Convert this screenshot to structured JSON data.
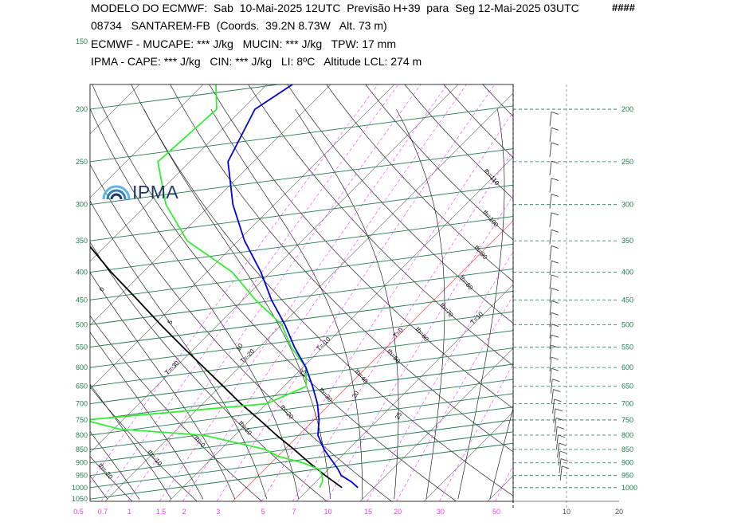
{
  "header": {
    "line1": "MODELO DO ECMWF:  Sab  10-Mai-2025 12UTC  Previsão H+39  para  Seg 12-Mai-2025 03UTC",
    "marks": "####",
    "line2": "08734   SANTAREM-FB  (Coords.  39.2N 8.73W   Alt. 73 m)",
    "line3": "ECMWF - MUCAPE: *** J/kg   MUCIN: *** J/kg   TPW: 17 mm",
    "line4": "IPMA - CAPE: *** J/kg   CIN: *** J/kg   LI: 8ºC   Altitude LCL: 274 m"
  },
  "logo": {
    "text": "IPMA"
  },
  "colors": {
    "isobar": "#1f7a4a",
    "mixing_ratio": "#ff33ff",
    "dewpoint": "#33ee33",
    "temperature": "#0000dd",
    "parcel": "#000000",
    "isotherm_zero": "#ff6666",
    "wind": "#444444"
  },
  "chart_data": {
    "type": "skew-t log-p",
    "pressure_levels_left": [
      "150",
      "200",
      "250",
      "300",
      "350",
      "400",
      "450",
      "500",
      "550",
      "600",
      "650",
      "700",
      "750",
      "800",
      "850",
      "900",
      "950",
      "1000",
      "1050"
    ],
    "pressure_levels_right": [
      "200",
      "250",
      "300",
      "350",
      "400",
      "450",
      "500",
      "550",
      "600",
      "650",
      "700",
      "750",
      "800",
      "850",
      "900",
      "950",
      "1000"
    ],
    "mixing_ratio_ticks": [
      "0.5",
      "0.7",
      "1",
      "1.5",
      "2",
      "3",
      "5",
      "7",
      "10",
      "15",
      "20",
      "30",
      "50"
    ],
    "wind_axis_ticks": [
      "10",
      "20"
    ],
    "isotherm_labels": [
      "T=-90",
      "T=-80",
      "T=-70",
      "T=-60",
      "T=-50",
      "T=-40",
      "T=-30",
      "T=-20",
      "T=-10",
      "T=0",
      "T=10",
      "T=20",
      "T=30",
      "T=40"
    ],
    "dry_adiabat_labels": [
      "th=110",
      "th=100",
      "th=90",
      "th=80",
      "th=70",
      "th=60",
      "th=50",
      "th=40",
      "th=30",
      "th=20",
      "th=10",
      "th=0",
      "th=-10",
      "th=-20"
    ],
    "moist_adiabat_labels": [
      "25",
      "20",
      "15",
      "10",
      "5",
      "0",
      "-5",
      "-10"
    ],
    "temperature_profile": {
      "name": "",
      "pressure": [
        1000,
        975,
        950,
        925,
        900,
        875,
        850,
        800,
        750,
        700,
        650,
        600,
        550,
        500,
        450,
        400,
        350,
        300,
        250,
        200,
        180
      ],
      "temperature": [
        17.5,
        15.5,
        13.0,
        11.5,
        9.8,
        8.0,
        6.2,
        3.0,
        0.8,
        -2.0,
        -5.5,
        -9.5,
        -14.5,
        -19.5,
        -25.5,
        -31.5,
        -39.0,
        -46.5,
        -54.0,
        -58.0,
        -56.0
      ]
    },
    "dewpoint_profile": {
      "name": "",
      "pressure": [
        1000,
        975,
        950,
        925,
        900,
        875,
        850,
        800,
        780,
        750,
        700,
        650,
        600,
        550,
        500,
        450,
        400,
        350,
        300,
        250,
        200,
        180
      ],
      "dewpoint": [
        11.5,
        11.0,
        10.0,
        8.5,
        5.0,
        0.0,
        -3.0,
        -15.0,
        -29.0,
        -36.0,
        -10.0,
        -6.5,
        -9.5,
        -15.0,
        -20.0,
        -28.0,
        -36.0,
        -48.0,
        -57.0,
        -65.0,
        -64.0,
        -68.0
      ]
    },
    "parcel_profile": {
      "name": "",
      "pressure": [
        1000,
        950,
        900,
        850,
        800,
        750,
        700,
        650,
        600,
        550,
        500,
        450,
        400,
        350,
        300,
        250,
        200
      ],
      "temperature": [
        15.0,
        10.5,
        6.0,
        1.5,
        -3.5,
        -8.5,
        -14.0,
        -19.5,
        -25.5,
        -32.0,
        -39.0,
        -46.5,
        -55.0,
        -64.0,
        -74.0,
        -86.0,
        -100.0
      ]
    }
  }
}
